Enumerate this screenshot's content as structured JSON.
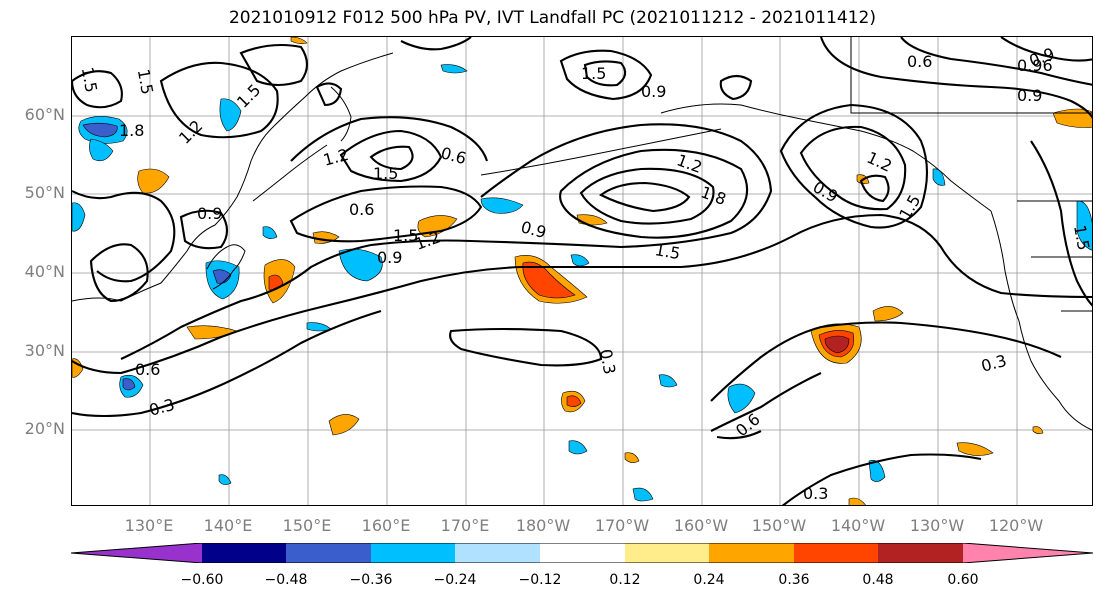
{
  "title": "2021010912 F012 500 hPa PV, IVT Landfall PC (2021011212 - 2021011412)",
  "map": {
    "lat_labels": [
      "60°N",
      "50°N",
      "40°N",
      "30°N",
      "20°N"
    ],
    "lon_labels": [
      "130°E",
      "140°E",
      "150°E",
      "160°E",
      "170°E",
      "180°W",
      "170°W",
      "160°W",
      "150°W",
      "140°W",
      "130°W",
      "120°W"
    ],
    "contour_labels": [
      "1.5",
      "1.5",
      "1.8",
      "1.2",
      "1.5",
      "1.2",
      "0.6",
      "1.5",
      "0.9",
      "0.6",
      "1.5",
      "1.2",
      "0.9",
      "0.9",
      "1.2",
      "1.8",
      "1.5",
      "0.9",
      "1.2",
      "1.5",
      "0.9",
      "0.6",
      "0.96",
      "0.9",
      "0.9",
      "0.6",
      "0.3",
      "0.3",
      "0.3",
      "0.6",
      "0.3",
      "1.5",
      "1.5"
    ],
    "colors": {
      "contour": "#000000",
      "grid": "#999999",
      "coast": "#000000"
    }
  },
  "colorbar": {
    "ticks": [
      "−0.60",
      "−0.48",
      "−0.36",
      "−0.24",
      "−0.12",
      "0.12",
      "0.24",
      "0.36",
      "0.48",
      "0.60"
    ],
    "colors": [
      "#9932CC",
      "#00008B",
      "#3A5FCD",
      "#00BFFF",
      "#B0E2FF",
      "#FFFFFF",
      "#FFEC8B",
      "#FFA500",
      "#FF4500",
      "#B22222",
      "#FF83AC"
    ]
  }
}
